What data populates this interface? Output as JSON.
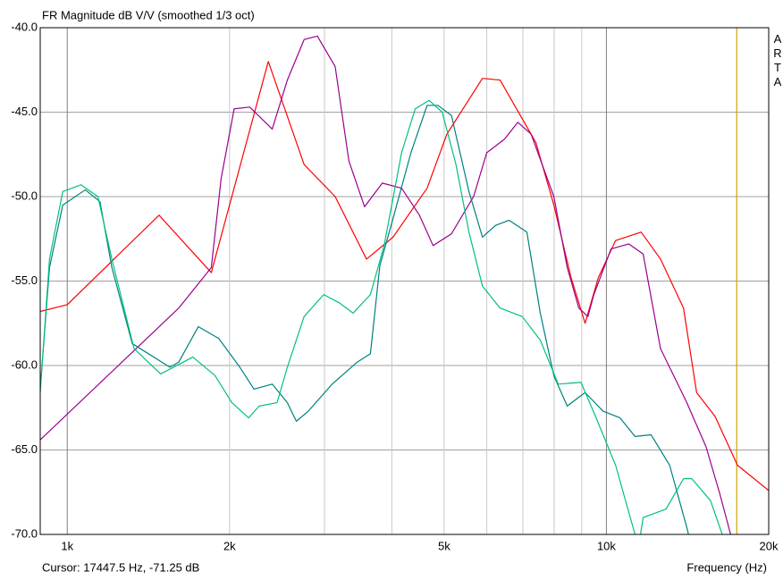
{
  "chart_data": {
    "type": "line",
    "title": "FR Magnitude dB V/V (smoothed 1/3 oct)",
    "side_label": "ARTA",
    "x_label": "Frequency (Hz)",
    "cursor_text": "Cursor: 17447.5 Hz, -71.25 dB",
    "cursor_x": 17447.5,
    "cursor_color": "#d4a000",
    "log_x": true,
    "grid": true,
    "xlim": [
      891,
      20000
    ],
    "ylim": [
      -70,
      -40
    ],
    "xticks": [
      {
        "value": 1000,
        "label": "1k"
      },
      {
        "value": 2000,
        "label": "2k"
      },
      {
        "value": 5000,
        "label": "5k"
      },
      {
        "value": 10000,
        "label": "10k"
      },
      {
        "value": 20000,
        "label": "20k"
      }
    ],
    "x_minor_grid": [
      3000,
      4000,
      6000,
      7000,
      8000,
      9000
    ],
    "yticks": [
      {
        "value": -40,
        "label": "-40.0"
      },
      {
        "value": -45,
        "label": "-45.0"
      },
      {
        "value": -50,
        "label": "-50.0"
      },
      {
        "value": -55,
        "label": "-55.0"
      },
      {
        "value": -60,
        "label": "-60.0"
      },
      {
        "value": -65,
        "label": "-65.0"
      },
      {
        "value": -70,
        "label": "-70.0"
      }
    ],
    "series": [
      {
        "color": "#ff0000",
        "x": [
          891,
          1000,
          1480,
          1850,
          2360,
          2750,
          3140,
          3590,
          4020,
          4650,
          5060,
          5890,
          6350,
          7400,
          7990,
          8600,
          9130,
          9660,
          10400,
          11600,
          12600,
          13900,
          14700,
          15900,
          17500,
          20000
        ],
        "values": [
          -56.8,
          -56.4,
          -51.1,
          -54.5,
          -42.0,
          -48.1,
          -50.0,
          -53.7,
          -52.4,
          -49.5,
          -46.3,
          -43.0,
          -43.1,
          -46.8,
          -50.5,
          -54.8,
          -57.5,
          -54.8,
          -52.6,
          -52.1,
          -53.7,
          -56.6,
          -61.6,
          -63.0,
          -65.9,
          -67.4
        ]
      },
      {
        "color": "#9a0090",
        "x": [
          891,
          1610,
          1850,
          1930,
          2040,
          2180,
          2400,
          2560,
          2750,
          2910,
          3140,
          3330,
          3560,
          3840,
          4170,
          4500,
          4770,
          5160,
          5670,
          6000,
          6470,
          6850,
          7250,
          7990,
          8460,
          8890,
          9240,
          9480,
          10200,
          11000,
          11700,
          12600,
          14100,
          15300,
          16200,
          17000
        ],
        "values": [
          -64.4,
          -56.6,
          -54.2,
          -48.9,
          -44.8,
          -44.7,
          -46.0,
          -43.1,
          -40.7,
          -40.5,
          -42.3,
          -47.9,
          -50.6,
          -49.2,
          -49.5,
          -51.1,
          -52.9,
          -52.2,
          -50.0,
          -47.4,
          -46.6,
          -45.6,
          -46.3,
          -50.0,
          -54.2,
          -56.6,
          -57.1,
          -55.8,
          -53.1,
          -52.8,
          -53.4,
          -59.0,
          -62.2,
          -64.8,
          -67.5,
          -70.0
        ]
      },
      {
        "color": "#008080",
        "x": [
          891,
          927,
          981,
          1080,
          1150,
          1210,
          1320,
          1550,
          1610,
          1750,
          1910,
          2090,
          2220,
          2400,
          2560,
          2660,
          2800,
          3100,
          3450,
          3650,
          3800,
          4020,
          4340,
          4650,
          4870,
          5160,
          5560,
          5890,
          6230,
          6600,
          7120,
          7540,
          7990,
          8460,
          9130,
          9860,
          10600,
          11300,
          12100,
          13100,
          14100,
          14200
        ],
        "values": [
          -61.4,
          -54.2,
          -50.5,
          -49.6,
          -50.3,
          -54.2,
          -58.7,
          -60.1,
          -59.8,
          -57.7,
          -58.4,
          -60.1,
          -61.4,
          -61.1,
          -62.2,
          -63.3,
          -62.7,
          -61.1,
          -59.8,
          -59.3,
          -54.1,
          -51.3,
          -47.4,
          -44.6,
          -44.6,
          -45.2,
          -49.7,
          -52.4,
          -51.7,
          -51.4,
          -52.1,
          -56.9,
          -60.6,
          -62.4,
          -61.6,
          -62.7,
          -63.1,
          -64.2,
          -64.1,
          -65.9,
          -69.6,
          -70.0
        ]
      },
      {
        "color": "#00c080",
        "x": [
          891,
          927,
          981,
          1060,
          1140,
          1210,
          1330,
          1490,
          1710,
          1880,
          2020,
          2170,
          2270,
          2450,
          2560,
          2750,
          2990,
          3200,
          3390,
          3650,
          3870,
          4170,
          4420,
          4690,
          4960,
          5260,
          5560,
          5890,
          6350,
          6980,
          7540,
          8140,
          8970,
          9600,
          10400,
          11300,
          11500,
          11700,
          12900,
          13900,
          14400,
          15600,
          16400
        ],
        "values": [
          -61.6,
          -53.7,
          -49.7,
          -49.3,
          -50.0,
          -53.7,
          -59.0,
          -60.5,
          -59.5,
          -60.6,
          -62.2,
          -63.1,
          -62.4,
          -62.2,
          -60.1,
          -57.1,
          -55.8,
          -56.3,
          -56.9,
          -55.8,
          -52.9,
          -47.4,
          -44.8,
          -44.3,
          -45.0,
          -48.1,
          -52.1,
          -55.3,
          -56.6,
          -57.1,
          -58.5,
          -61.1,
          -61.0,
          -63.2,
          -65.9,
          -70.0,
          -70.5,
          -69.0,
          -68.5,
          -66.7,
          -66.7,
          -68.0,
          -70.0
        ]
      }
    ]
  }
}
